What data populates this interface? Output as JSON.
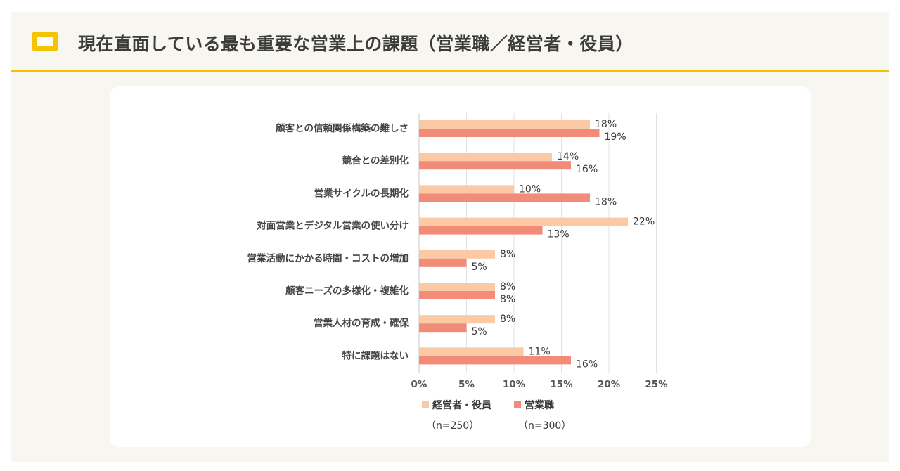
{
  "header": {
    "title": "現在直面している最も重要な営業上の課題（営業職／経営者・役員）"
  },
  "colors": {
    "accent": "#f5c400",
    "series_manager": "#fbc9a3",
    "series_sales": "#f28b78"
  },
  "chart_data": {
    "type": "bar",
    "orientation": "horizontal",
    "categories": [
      "顧客との信頼関係構築の難しさ",
      "競合との差別化",
      "営業サイクルの長期化",
      "対面営業とデジタル営業の使い分け",
      "営業活動にかかる時間・コストの増加",
      "顧客ニーズの多様化・複雑化",
      "営業人材の育成・確保",
      "特に課題はない"
    ],
    "series": [
      {
        "name": "経営者・役員",
        "n_label": "（n=250）",
        "values": [
          18,
          14,
          10,
          22,
          8,
          8,
          8,
          11
        ]
      },
      {
        "name": "営業職",
        "n_label": "（n=300）",
        "values": [
          19,
          16,
          18,
          13,
          5,
          8,
          5,
          16
        ]
      }
    ],
    "xlim": [
      0,
      25
    ],
    "xticks": [
      "0%",
      "5%",
      "10%",
      "15%",
      "20%",
      "25%"
    ],
    "value_suffix": "%",
    "grid": true,
    "legend": "bottom"
  }
}
